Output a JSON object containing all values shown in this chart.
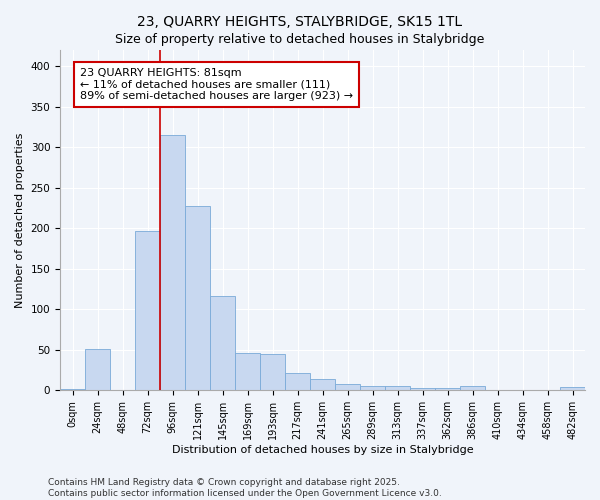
{
  "title": "23, QUARRY HEIGHTS, STALYBRIDGE, SK15 1TL",
  "subtitle": "Size of property relative to detached houses in Stalybridge",
  "xlabel": "Distribution of detached houses by size in Stalybridge",
  "ylabel": "Number of detached properties",
  "categories": [
    "0sqm",
    "24sqm",
    "48sqm",
    "72sqm",
    "96sqm",
    "121sqm",
    "145sqm",
    "169sqm",
    "193sqm",
    "217sqm",
    "241sqm",
    "265sqm",
    "289sqm",
    "313sqm",
    "337sqm",
    "362sqm",
    "386sqm",
    "410sqm",
    "434sqm",
    "458sqm",
    "482sqm"
  ],
  "values": [
    2,
    51,
    0,
    197,
    315,
    228,
    117,
    46,
    45,
    22,
    14,
    8,
    5,
    5,
    3,
    3,
    5,
    0,
    0,
    0,
    4
  ],
  "bar_color": "#c8d8f0",
  "bar_edge_color": "#7aaad8",
  "bar_width": 1.0,
  "vline_x": 3.5,
  "vline_color": "#cc0000",
  "annotation_text": "23 QUARRY HEIGHTS: 81sqm\n← 11% of detached houses are smaller (111)\n89% of semi-detached houses are larger (923) →",
  "annotation_box_facecolor": "#ffffff",
  "annotation_box_edgecolor": "#cc0000",
  "ylim": [
    0,
    420
  ],
  "yticks": [
    0,
    50,
    100,
    150,
    200,
    250,
    300,
    350,
    400
  ],
  "bg_color": "#f0f4fa",
  "plot_bg": "#f0f4fa",
  "grid_color": "#ffffff",
  "footer": "Contains HM Land Registry data © Crown copyright and database right 2025.\nContains public sector information licensed under the Open Government Licence v3.0.",
  "title_fontsize": 10,
  "subtitle_fontsize": 9,
  "label_fontsize": 8,
  "tick_fontsize": 7,
  "annotation_fontsize": 8,
  "footer_fontsize": 6.5
}
